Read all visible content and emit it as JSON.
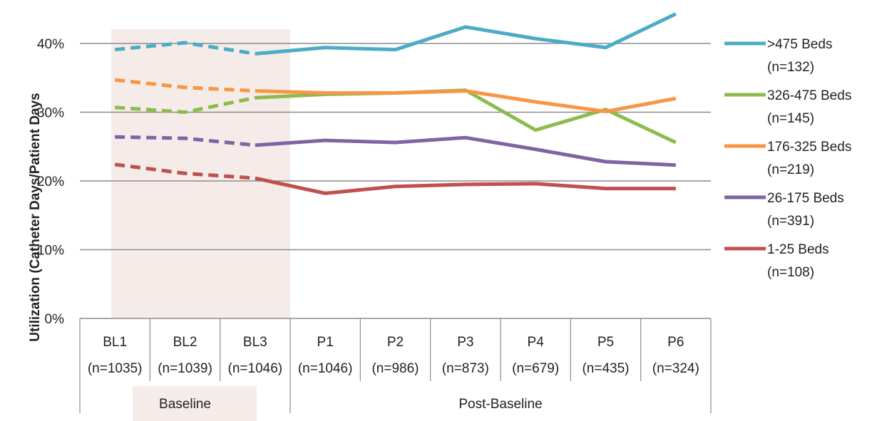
{
  "chart_data": {
    "type": "line",
    "title": "",
    "ylabel": "Utilization (Catheter Days/Patient Days",
    "xlabel": "",
    "ylim": [
      0,
      40
    ],
    "y_tick_values": [
      0,
      10,
      20,
      30,
      40
    ],
    "y_tick_labels": [
      "0%",
      "10%",
      "20%",
      "30%",
      "40%"
    ],
    "grid": true,
    "legend_position": "right",
    "categories": [
      {
        "label": "BL1",
        "n": "(n=1035)"
      },
      {
        "label": "BL2",
        "n": "(n=1039)"
      },
      {
        "label": "BL3",
        "n": "(n=1046)"
      },
      {
        "label": "P1",
        "n": "(n=1046)"
      },
      {
        "label": "P2",
        "n": "(n=986)"
      },
      {
        "label": "P3",
        "n": "(n=873)"
      },
      {
        "label": "P4",
        "n": "(n=679)"
      },
      {
        "label": "P5",
        "n": "(n=435)"
      },
      {
        "label": "P6",
        "n": "(n=324)"
      }
    ],
    "groups": [
      {
        "label": "Baseline",
        "start": 0,
        "end": 2,
        "shaded": true
      },
      {
        "label": "Post-Baseline",
        "start": 3,
        "end": 8,
        "shaded": false
      }
    ],
    "baseline_shade_color": "#f5ecea",
    "dashed_through_index": 2,
    "series": [
      {
        "name": ">475  Beds",
        "n": "(n=132)",
        "color": "#4bacc6",
        "values": [
          39.1,
          40.1,
          38.5,
          39.4,
          39.1,
          42.4,
          40.7,
          39.4,
          44.3
        ]
      },
      {
        "name": "326-475  Beds",
        "n": "(n=145)",
        "color": "#8dbb4d",
        "values": [
          30.7,
          30.0,
          32.1,
          32.6,
          32.8,
          33.2,
          27.4,
          30.4,
          25.6
        ]
      },
      {
        "name": "176-325  Beds",
        "n": "(n=219)",
        "color": "#f79646",
        "values": [
          34.7,
          33.6,
          33.1,
          32.8,
          32.8,
          33.1,
          31.5,
          30.1,
          32.0
        ]
      },
      {
        "name": "26-175  Beds",
        "n": "(n=391)",
        "color": "#8064a2",
        "values": [
          26.4,
          26.2,
          25.2,
          25.9,
          25.6,
          26.3,
          24.6,
          22.8,
          22.3
        ]
      },
      {
        "name": "1-25 Beds",
        "n": "(n=108)",
        "color": "#c0504d",
        "values": [
          22.4,
          21.1,
          20.4,
          18.2,
          19.2,
          19.5,
          19.6,
          18.9,
          18.9
        ]
      }
    ]
  }
}
